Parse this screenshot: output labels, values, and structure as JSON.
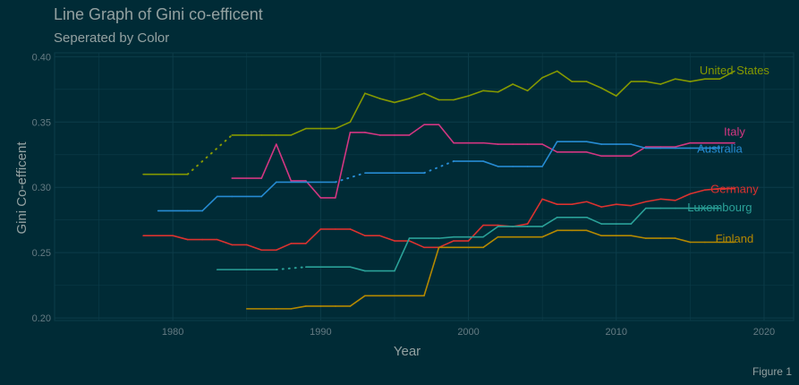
{
  "figure": {
    "title": "Line Graph of Gini co-efficent",
    "subtitle": "Seperated by Color",
    "caption": "Figure 1"
  },
  "colors": {
    "background": "#002b36",
    "text": "#93a1a1",
    "grid": "#0c3d4a",
    "axis": "#657b83"
  },
  "chart_data": {
    "type": "line",
    "title": "Line Graph of Gini co-efficent",
    "subtitle": "Seperated by Color",
    "xlabel": "Year",
    "ylabel": "Gini Co-efficent",
    "xlim": [
      1972,
      2022
    ],
    "ylim": [
      0.198,
      0.403
    ],
    "x_ticks": [
      1980,
      1990,
      2000,
      2010,
      2020
    ],
    "y_ticks": [
      0.2,
      0.25,
      0.3,
      0.35,
      0.4
    ],
    "x_tick_labels": [
      "1980",
      "1990",
      "2000",
      "2010",
      "2020"
    ],
    "y_tick_labels": [
      "0.20",
      "0.25",
      "0.30",
      "0.35",
      "0.40"
    ],
    "grid": true,
    "legend": "direct labels at line ends",
    "series": [
      {
        "name": "United States",
        "color": "#859900",
        "label_anchor": [
          2018,
          0.39
        ],
        "points": [
          [
            1978,
            0.31,
            1
          ],
          [
            1981,
            0.31,
            0
          ],
          [
            1984,
            0.34,
            1
          ],
          [
            1985,
            0.34,
            1
          ],
          [
            1986,
            0.34,
            1
          ],
          [
            1987,
            0.34,
            1
          ],
          [
            1988,
            0.34,
            1
          ],
          [
            1989,
            0.345,
            1
          ],
          [
            1990,
            0.345,
            1
          ],
          [
            1991,
            0.345,
            1
          ],
          [
            1992,
            0.35,
            1
          ],
          [
            1993,
            0.372,
            1
          ],
          [
            1994,
            0.368,
            1
          ],
          [
            1995,
            0.365,
            1
          ],
          [
            1996,
            0.368,
            1
          ],
          [
            1997,
            0.372,
            1
          ],
          [
            1998,
            0.367,
            1
          ],
          [
            1999,
            0.367,
            1
          ],
          [
            2000,
            0.37,
            1
          ],
          [
            2001,
            0.374,
            1
          ],
          [
            2002,
            0.373,
            1
          ],
          [
            2003,
            0.379,
            1
          ],
          [
            2004,
            0.374,
            1
          ],
          [
            2005,
            0.384,
            1
          ],
          [
            2006,
            0.389,
            1
          ],
          [
            2007,
            0.381,
            1
          ],
          [
            2008,
            0.381,
            1
          ],
          [
            2009,
            0.376,
            1
          ],
          [
            2010,
            0.37,
            1
          ],
          [
            2011,
            0.381,
            1
          ],
          [
            2012,
            0.381,
            1
          ],
          [
            2013,
            0.379,
            1
          ],
          [
            2014,
            0.383,
            1
          ],
          [
            2015,
            0.381,
            1
          ],
          [
            2016,
            0.383,
            1
          ],
          [
            2017,
            0.383,
            1
          ],
          [
            2018,
            0.389,
            1
          ]
        ]
      },
      {
        "name": "Italy",
        "color": "#d33682",
        "label_anchor": [
          2018,
          0.343
        ],
        "points": [
          [
            1984,
            0.307,
            1
          ],
          [
            1986,
            0.307,
            1
          ],
          [
            1987,
            0.333,
            1
          ],
          [
            1988,
            0.305,
            1
          ],
          [
            1989,
            0.305,
            1
          ],
          [
            1990,
            0.292,
            1
          ],
          [
            1991,
            0.292,
            1
          ],
          [
            1992,
            0.342,
            1
          ],
          [
            1993,
            0.342,
            1
          ],
          [
            1994,
            0.34,
            1
          ],
          [
            1995,
            0.34,
            1
          ],
          [
            1996,
            0.34,
            1
          ],
          [
            1997,
            0.348,
            1
          ],
          [
            1998,
            0.348,
            1
          ],
          [
            1999,
            0.334,
            1
          ],
          [
            2000,
            0.334,
            1
          ],
          [
            2001,
            0.334,
            1
          ],
          [
            2002,
            0.333,
            1
          ],
          [
            2003,
            0.333,
            1
          ],
          [
            2004,
            0.333,
            1
          ],
          [
            2005,
            0.333,
            1
          ],
          [
            2006,
            0.327,
            1
          ],
          [
            2007,
            0.327,
            1
          ],
          [
            2008,
            0.327,
            1
          ],
          [
            2009,
            0.324,
            1
          ],
          [
            2010,
            0.324,
            1
          ],
          [
            2011,
            0.324,
            1
          ],
          [
            2012,
            0.331,
            1
          ],
          [
            2013,
            0.331,
            1
          ],
          [
            2014,
            0.331,
            1
          ],
          [
            2015,
            0.334,
            1
          ],
          [
            2016,
            0.334,
            1
          ],
          [
            2017,
            0.334,
            1
          ],
          [
            2018,
            0.334,
            1
          ]
        ]
      },
      {
        "name": "Australia",
        "color": "#268bd2",
        "label_anchor": [
          2017,
          0.33
        ],
        "points": [
          [
            1979,
            0.282,
            1
          ],
          [
            1981,
            0.282,
            1
          ],
          [
            1982,
            0.282,
            1
          ],
          [
            1983,
            0.293,
            1
          ],
          [
            1984,
            0.293,
            1
          ],
          [
            1986,
            0.293,
            1
          ],
          [
            1987,
            0.304,
            1
          ],
          [
            1989,
            0.304,
            1
          ],
          [
            1991,
            0.304,
            0
          ],
          [
            1993,
            0.311,
            1
          ],
          [
            1995,
            0.311,
            1
          ],
          [
            1997,
            0.311,
            0
          ],
          [
            1999,
            0.32,
            1
          ],
          [
            2001,
            0.32,
            1
          ],
          [
            2002,
            0.316,
            1
          ],
          [
            2003,
            0.316,
            1
          ],
          [
            2004,
            0.316,
            1
          ],
          [
            2005,
            0.316,
            1
          ],
          [
            2006,
            0.335,
            1
          ],
          [
            2007,
            0.335,
            1
          ],
          [
            2008,
            0.335,
            1
          ],
          [
            2009,
            0.333,
            1
          ],
          [
            2010,
            0.333,
            1
          ],
          [
            2011,
            0.333,
            1
          ],
          [
            2012,
            0.33,
            1
          ],
          [
            2013,
            0.33,
            1
          ],
          [
            2014,
            0.33,
            1
          ],
          [
            2015,
            0.33,
            1
          ],
          [
            2016,
            0.33,
            1
          ],
          [
            2017,
            0.33,
            1
          ]
        ]
      },
      {
        "name": "Germany",
        "color": "#dc322f",
        "label_anchor": [
          2018,
          0.299
        ],
        "points": [
          [
            1978,
            0.263,
            1
          ],
          [
            1980,
            0.263,
            1
          ],
          [
            1981,
            0.26,
            1
          ],
          [
            1982,
            0.26,
            1
          ],
          [
            1983,
            0.26,
            1
          ],
          [
            1984,
            0.256,
            1
          ],
          [
            1985,
            0.256,
            1
          ],
          [
            1986,
            0.252,
            1
          ],
          [
            1987,
            0.252,
            1
          ],
          [
            1988,
            0.257,
            1
          ],
          [
            1989,
            0.257,
            1
          ],
          [
            1990,
            0.268,
            1
          ],
          [
            1991,
            0.268,
            1
          ],
          [
            1992,
            0.268,
            1
          ],
          [
            1993,
            0.263,
            1
          ],
          [
            1994,
            0.263,
            1
          ],
          [
            1995,
            0.259,
            1
          ],
          [
            1996,
            0.259,
            1
          ],
          [
            1997,
            0.254,
            1
          ],
          [
            1998,
            0.254,
            1
          ],
          [
            1999,
            0.259,
            1
          ],
          [
            2000,
            0.259,
            1
          ],
          [
            2001,
            0.271,
            1
          ],
          [
            2002,
            0.271,
            1
          ],
          [
            2003,
            0.27,
            1
          ],
          [
            2004,
            0.272,
            1
          ],
          [
            2005,
            0.291,
            1
          ],
          [
            2006,
            0.287,
            1
          ],
          [
            2007,
            0.287,
            1
          ],
          [
            2008,
            0.289,
            1
          ],
          [
            2009,
            0.285,
            1
          ],
          [
            2010,
            0.287,
            1
          ],
          [
            2011,
            0.286,
            1
          ],
          [
            2012,
            0.289,
            1
          ],
          [
            2013,
            0.291,
            1
          ],
          [
            2014,
            0.29,
            1
          ],
          [
            2015,
            0.295,
            1
          ],
          [
            2016,
            0.298,
            1
          ],
          [
            2017,
            0.299,
            1
          ],
          [
            2018,
            0.299,
            1
          ]
        ]
      },
      {
        "name": "Luxembourg",
        "color": "#2aa198",
        "label_anchor": [
          2017,
          0.285
        ],
        "points": [
          [
            1983,
            0.237,
            1
          ],
          [
            1985,
            0.237,
            1
          ],
          [
            1987,
            0.237,
            0
          ],
          [
            1989,
            0.239,
            1
          ],
          [
            1991,
            0.239,
            1
          ],
          [
            1992,
            0.239,
            1
          ],
          [
            1993,
            0.236,
            1
          ],
          [
            1995,
            0.236,
            1
          ],
          [
            1996,
            0.261,
            1
          ],
          [
            1998,
            0.261,
            1
          ],
          [
            1999,
            0.262,
            1
          ],
          [
            2000,
            0.262,
            1
          ],
          [
            2001,
            0.262,
            1
          ],
          [
            2002,
            0.27,
            1
          ],
          [
            2003,
            0.27,
            1
          ],
          [
            2004,
            0.27,
            1
          ],
          [
            2005,
            0.27,
            1
          ],
          [
            2006,
            0.277,
            1
          ],
          [
            2007,
            0.277,
            1
          ],
          [
            2008,
            0.277,
            1
          ],
          [
            2009,
            0.272,
            1
          ],
          [
            2010,
            0.272,
            1
          ],
          [
            2011,
            0.272,
            1
          ],
          [
            2012,
            0.284,
            1
          ],
          [
            2013,
            0.284,
            1
          ],
          [
            2014,
            0.284,
            1
          ],
          [
            2015,
            0.284,
            1
          ],
          [
            2016,
            0.284,
            1
          ],
          [
            2017,
            0.284,
            1
          ]
        ]
      },
      {
        "name": "Finland",
        "color": "#b58900",
        "label_anchor": [
          2018,
          0.261
        ],
        "points": [
          [
            1985,
            0.207,
            1
          ],
          [
            1987,
            0.207,
            1
          ],
          [
            1988,
            0.207,
            1
          ],
          [
            1989,
            0.209,
            1
          ],
          [
            1990,
            0.209,
            1
          ],
          [
            1991,
            0.209,
            1
          ],
          [
            1992,
            0.209,
            1
          ],
          [
            1993,
            0.217,
            1
          ],
          [
            1994,
            0.217,
            1
          ],
          [
            1995,
            0.217,
            1
          ],
          [
            1996,
            0.217,
            1
          ],
          [
            1997,
            0.217,
            1
          ],
          [
            1998,
            0.254,
            1
          ],
          [
            1999,
            0.254,
            1
          ],
          [
            2000,
            0.254,
            1
          ],
          [
            2001,
            0.254,
            1
          ],
          [
            2002,
            0.262,
            1
          ],
          [
            2003,
            0.262,
            1
          ],
          [
            2004,
            0.262,
            1
          ],
          [
            2005,
            0.262,
            1
          ],
          [
            2006,
            0.267,
            1
          ],
          [
            2007,
            0.267,
            1
          ],
          [
            2008,
            0.267,
            1
          ],
          [
            2009,
            0.263,
            1
          ],
          [
            2010,
            0.263,
            1
          ],
          [
            2011,
            0.263,
            1
          ],
          [
            2012,
            0.261,
            1
          ],
          [
            2013,
            0.261,
            1
          ],
          [
            2014,
            0.261,
            1
          ],
          [
            2015,
            0.258,
            1
          ],
          [
            2016,
            0.258,
            1
          ],
          [
            2017,
            0.258,
            1
          ],
          [
            2018,
            0.258,
            1
          ]
        ]
      }
    ]
  }
}
